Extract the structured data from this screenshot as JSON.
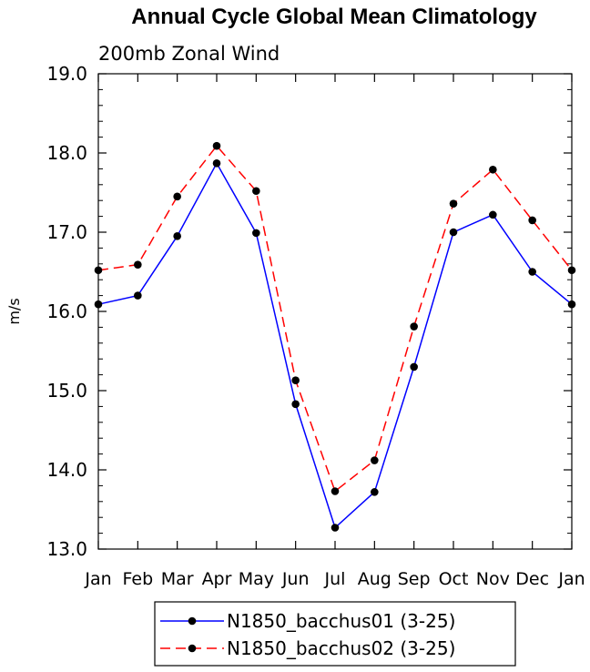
{
  "chart_data": {
    "type": "line",
    "title": "Annual Cycle Global Mean Climatology",
    "subtitle": "200mb Zonal Wind",
    "xlabel": "",
    "ylabel": "m/s",
    "categories": [
      "Jan",
      "Feb",
      "Mar",
      "Apr",
      "May",
      "Jun",
      "Jul",
      "Aug",
      "Sep",
      "Oct",
      "Nov",
      "Dec",
      "Jan"
    ],
    "ylim": [
      13.0,
      19.0
    ],
    "yticks": [
      "13.0",
      "14.0",
      "15.0",
      "16.0",
      "17.0",
      "18.0",
      "19.0"
    ],
    "grid": false,
    "legend_position": "bottom",
    "series": [
      {
        "name": "N1850_bacchus01 (3-25)",
        "color": "#0000ff",
        "line_style": "solid",
        "marker": "filled-circle",
        "values": [
          16.09,
          16.2,
          16.95,
          17.87,
          16.99,
          14.83,
          13.27,
          13.72,
          15.3,
          17.0,
          17.22,
          16.5,
          16.09
        ]
      },
      {
        "name": "N1850_bacchus02 (3-25)",
        "color": "#ff0000",
        "line_style": "dashed",
        "marker": "filled-circle",
        "values": [
          16.52,
          16.59,
          17.45,
          18.09,
          17.52,
          15.13,
          13.73,
          14.12,
          15.81,
          17.36,
          17.79,
          17.15,
          16.52
        ]
      }
    ]
  }
}
